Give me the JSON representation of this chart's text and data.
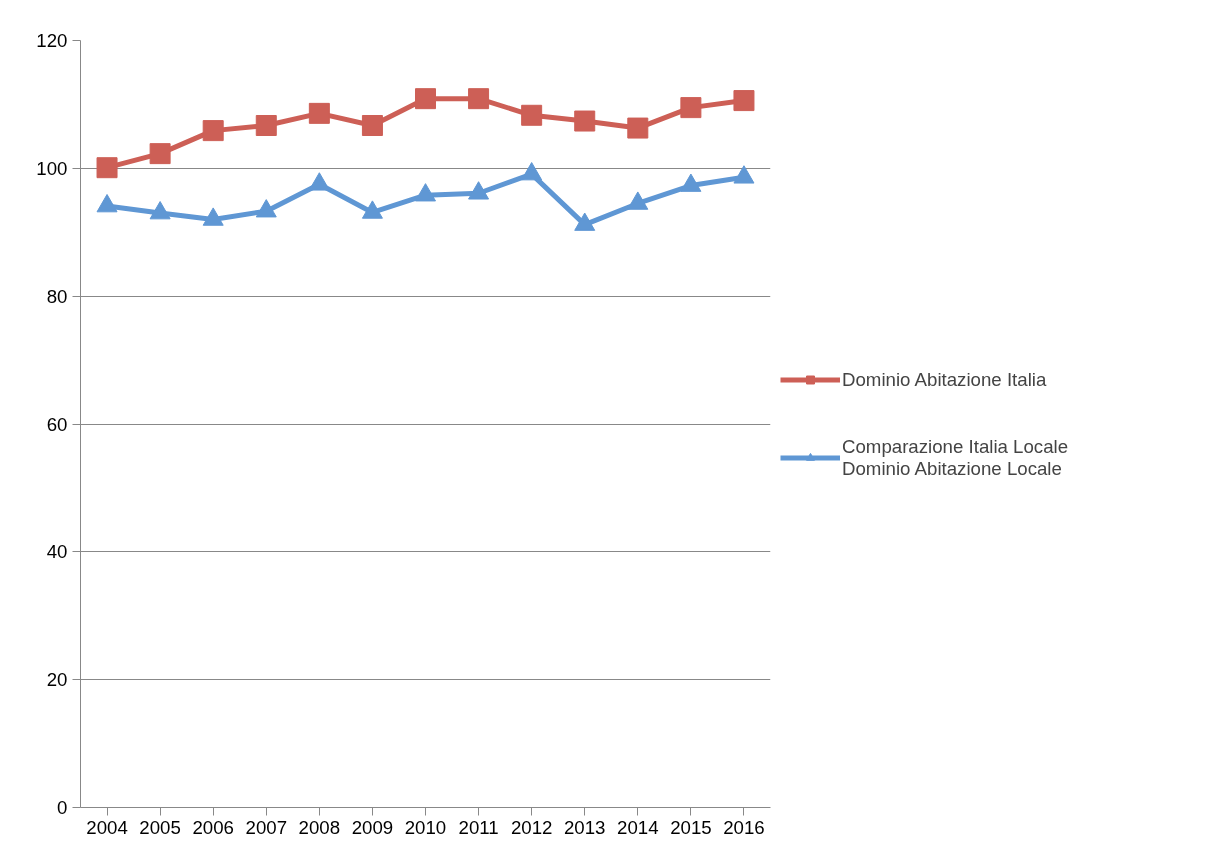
{
  "chart_data": {
    "type": "line",
    "categories": [
      "2004",
      "2005",
      "2006",
      "2007",
      "2008",
      "2009",
      "2010",
      "2011",
      "2012",
      "2013",
      "2014",
      "2015",
      "2016"
    ],
    "series": [
      {
        "name": "Dominio Abitazione Italia",
        "color": "#cd5f56",
        "marker": "square",
        "values": [
          100.1,
          102.3,
          105.9,
          106.7,
          108.6,
          106.7,
          110.9,
          110.9,
          108.3,
          107.4,
          106.3,
          109.5,
          110.6
        ]
      },
      {
        "name": "Comparazione Italia Locale\nDominio Abitazione Locale",
        "color": "#5f97d4",
        "marker": "triangle",
        "values": [
          94.1,
          93.0,
          92.0,
          93.3,
          97.5,
          93.1,
          95.8,
          96.1,
          99.1,
          91.2,
          94.5,
          97.3,
          98.6
        ]
      }
    ],
    "ylim": [
      0,
      120
    ],
    "yticks": [
      0,
      20,
      40,
      60,
      80,
      100,
      120
    ],
    "grid": "y",
    "legend": "right",
    "line_style": "solid"
  }
}
